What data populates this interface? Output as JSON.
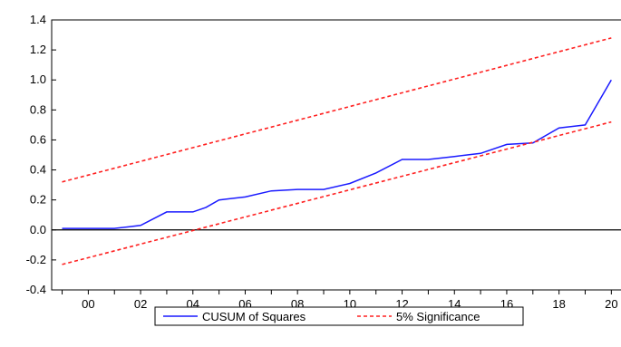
{
  "chart_data": {
    "type": "line",
    "title": "",
    "xlabel": "",
    "ylabel": "",
    "xlim": [
      1998.6,
      2020.3
    ],
    "ylim": [
      -0.4,
      1.4
    ],
    "y_ticks": [
      -0.4,
      -0.2,
      0.0,
      0.2,
      0.4,
      0.6,
      0.8,
      1.0,
      1.2,
      1.4
    ],
    "y_tick_labels": [
      "-0.4",
      "-0.2",
      "0.0",
      "0.2",
      "0.4",
      "0.6",
      "0.8",
      "1.0",
      "1.2",
      "1.4"
    ],
    "x_ticks": [
      2000,
      2002,
      2004,
      2006,
      2008,
      2010,
      2012,
      2014,
      2016,
      2018,
      2020
    ],
    "x_tick_labels": [
      "00",
      "02",
      "04",
      "06",
      "08",
      "10",
      "12",
      "14",
      "16",
      "18",
      "20"
    ],
    "zero_line": true,
    "grid": false,
    "legend_position": "bottom-center",
    "series": [
      {
        "name": "CUSUM of Squares",
        "color": "#1a1aff",
        "style": "solid",
        "x": [
          1999,
          2000,
          2001,
          2001.5,
          2002,
          2003,
          2004,
          2004.5,
          2005,
          2006,
          2007,
          2008,
          2009,
          2010,
          2011,
          2012,
          2013,
          2014,
          2015,
          2016,
          2017,
          2018,
          2019,
          2020
        ],
        "y": [
          0.01,
          0.01,
          0.01,
          0.02,
          0.03,
          0.12,
          0.12,
          0.15,
          0.2,
          0.22,
          0.26,
          0.27,
          0.27,
          0.31,
          0.38,
          0.47,
          0.47,
          0.49,
          0.51,
          0.57,
          0.58,
          0.68,
          0.7,
          1.0
        ]
      },
      {
        "name": "5% Significance",
        "color": "#ff2020",
        "style": "dashed",
        "x": [
          1999,
          2020
        ],
        "y": [
          0.32,
          1.28
        ]
      },
      {
        "name": "",
        "color": "#ff2020",
        "style": "dashed",
        "x": [
          1999,
          2020
        ],
        "y": [
          -0.23,
          0.72
        ]
      }
    ]
  }
}
